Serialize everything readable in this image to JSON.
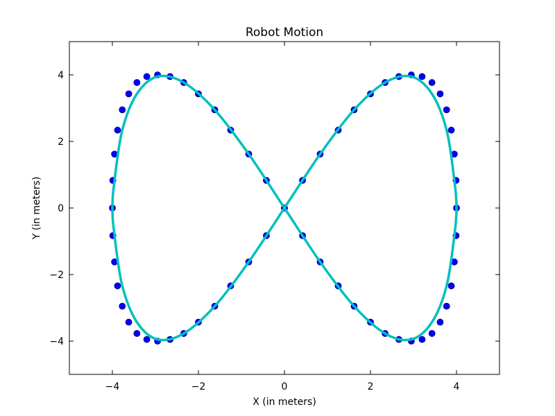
{
  "chart_data": {
    "type": "line",
    "title": "Robot Motion",
    "xlabel": "X (in meters)",
    "ylabel": "Y (in meters)",
    "xlim": [
      -5,
      5
    ],
    "ylim": [
      -5,
      5
    ],
    "xticks": [
      -4,
      -2,
      0,
      2,
      4
    ],
    "yticks": [
      -4,
      -2,
      0,
      2,
      4
    ],
    "xtick_labels": [
      "−4",
      "−2",
      "0",
      "2",
      "4"
    ],
    "ytick_labels": [
      "−4",
      "−2",
      "0",
      "2",
      "4"
    ],
    "grid": false,
    "series": [
      {
        "kind": "line",
        "color": "#00bfbf",
        "x": [
          0.0,
          0.83,
          1.62,
          2.34,
          2.95,
          3.43,
          3.77,
          3.95,
          4.0,
          3.95,
          3.77,
          3.43,
          2.95,
          2.34,
          1.62,
          0.83,
          0.0,
          -0.83,
          -1.62,
          -2.34,
          -2.95,
          -3.43,
          -3.77,
          -3.95,
          -4.0,
          -3.95,
          -3.77,
          -3.43,
          -2.95,
          -2.34,
          -1.62,
          -0.83,
          0.0
        ],
        "y": [
          0.0,
          1.62,
          2.95,
          3.77,
          3.95,
          3.43,
          2.34,
          0.83,
          0.0,
          -0.83,
          -2.34,
          -3.43,
          -3.95,
          -3.77,
          -2.95,
          -1.62,
          0.0,
          1.62,
          2.95,
          3.77,
          3.95,
          3.43,
          2.34,
          0.83,
          0.0,
          -0.83,
          -2.34,
          -3.43,
          -3.95,
          -3.77,
          -2.95,
          -1.62,
          0.0
        ]
      },
      {
        "kind": "scatter",
        "color": "#0000ff",
        "x": [
          0.0,
          0.42,
          0.83,
          1.25,
          1.62,
          2.0,
          2.34,
          2.66,
          2.95,
          3.2,
          3.43,
          3.62,
          3.77,
          3.88,
          3.95,
          3.99,
          4.0,
          3.99,
          3.95,
          3.88,
          3.77,
          3.62,
          3.43,
          3.2,
          2.95,
          2.66,
          2.34,
          2.0,
          1.62,
          1.25,
          0.83,
          0.42,
          0.0,
          -0.42,
          -0.83,
          -1.25,
          -1.62,
          -2.0,
          -2.34,
          -2.66,
          -2.95,
          -3.2,
          -3.43,
          -3.62,
          -3.77,
          -3.88,
          -3.95,
          -3.99,
          -4.0,
          -3.99,
          -3.95,
          -3.88,
          -3.77,
          -3.62,
          -3.43,
          -3.2,
          -2.95,
          -2.66,
          -2.34,
          -2.0,
          -1.62,
          -1.25,
          -0.83,
          -0.42
        ],
        "y": [
          0.0,
          0.83,
          1.62,
          2.34,
          2.95,
          3.43,
          3.77,
          3.95,
          4.0,
          3.95,
          3.77,
          3.43,
          2.95,
          2.34,
          1.62,
          0.83,
          0.0,
          -0.83,
          -1.62,
          -2.34,
          -2.95,
          -3.43,
          -3.77,
          -3.95,
          -4.0,
          -3.95,
          -3.77,
          -3.43,
          -2.95,
          -2.34,
          -1.62,
          -0.83,
          0.0,
          0.83,
          1.62,
          2.34,
          2.95,
          3.43,
          3.77,
          3.95,
          4.0,
          3.95,
          3.77,
          3.43,
          2.95,
          2.34,
          1.62,
          0.83,
          0.0,
          -0.83,
          -1.62,
          -2.34,
          -2.95,
          -3.43,
          -3.77,
          -3.95,
          -4.0,
          -3.95,
          -3.77,
          -3.43,
          -2.95,
          -2.34,
          -1.62,
          -0.83
        ]
      }
    ]
  }
}
